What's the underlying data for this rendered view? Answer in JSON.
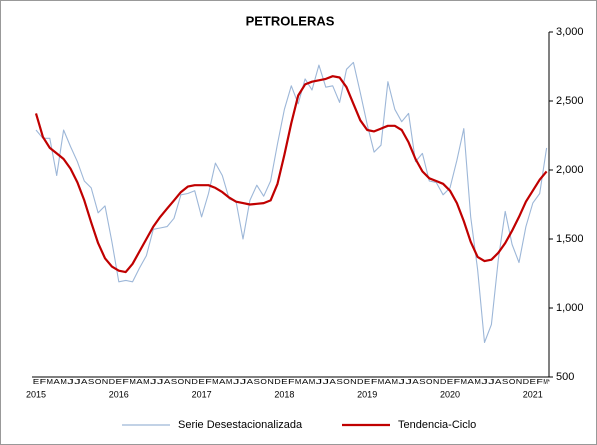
{
  "chart_data": {
    "type": "line",
    "title": "PETROLERAS",
    "categories": [
      "E",
      "F",
      "M",
      "A",
      "M",
      "J",
      "J",
      "A",
      "S",
      "O",
      "N",
      "D",
      "E",
      "F",
      "M",
      "A",
      "M",
      "J",
      "J",
      "A",
      "S",
      "O",
      "N",
      "D",
      "E",
      "F",
      "M",
      "A",
      "M",
      "J",
      "J",
      "A",
      "S",
      "O",
      "N",
      "D",
      "E",
      "F",
      "M",
      "A",
      "M",
      "J",
      "J",
      "A",
      "S",
      "O",
      "N",
      "D",
      "E",
      "F",
      "M",
      "A",
      "M",
      "J",
      "J",
      "A",
      "S",
      "O",
      "N",
      "D",
      "E",
      "F",
      "M",
      "A",
      "M",
      "J",
      "J",
      "A",
      "S",
      "O",
      "N",
      "D",
      "E",
      "F",
      "M*"
    ],
    "years": [
      "2015",
      "2016",
      "2017",
      "2018",
      "2019",
      "2020",
      "2021"
    ],
    "series": [
      {
        "name": "Serie Desestacionalizada",
        "color": "#9db7d8",
        "values": [
          2290,
          2230,
          2230,
          1960,
          2290,
          2170,
          2060,
          1920,
          1870,
          1690,
          1740,
          1480,
          1190,
          1200,
          1190,
          1290,
          1380,
          1570,
          1580,
          1590,
          1650,
          1820,
          1830,
          1850,
          1660,
          1830,
          2050,
          1960,
          1790,
          1770,
          1500,
          1780,
          1890,
          1810,
          1920,
          2190,
          2440,
          2610,
          2480,
          2660,
          2580,
          2760,
          2600,
          2610,
          2490,
          2730,
          2780,
          2560,
          2330,
          2130,
          2180,
          2640,
          2440,
          2350,
          2410,
          2060,
          2120,
          1920,
          1910,
          1820,
          1870,
          2070,
          2300,
          1660,
          1280,
          750,
          880,
          1350,
          1700,
          1460,
          1330,
          1590,
          1760,
          1830,
          2160
        ]
      },
      {
        "name": "Tendencia-Ciclo",
        "color": "#c00000",
        "values": [
          2410,
          2240,
          2160,
          2120,
          2080,
          2010,
          1910,
          1780,
          1620,
          1470,
          1360,
          1300,
          1270,
          1260,
          1320,
          1410,
          1500,
          1590,
          1660,
          1720,
          1780,
          1840,
          1880,
          1890,
          1890,
          1890,
          1870,
          1840,
          1800,
          1770,
          1760,
          1750,
          1755,
          1760,
          1780,
          1900,
          2110,
          2340,
          2540,
          2620,
          2640,
          2650,
          2660,
          2680,
          2670,
          2600,
          2480,
          2360,
          2290,
          2280,
          2300,
          2320,
          2320,
          2290,
          2200,
          2080,
          1990,
          1940,
          1920,
          1900,
          1850,
          1760,
          1630,
          1480,
          1370,
          1340,
          1350,
          1400,
          1470,
          1560,
          1660,
          1770,
          1850,
          1930,
          1990
        ]
      }
    ],
    "ylim": [
      500,
      3000
    ],
    "yticks": [
      500,
      {
        "value": 1000,
        "label": "1,000"
      },
      {
        "value": 1500,
        "label": "1,500"
      },
      {
        "value": 2000,
        "label": "2,000"
      },
      {
        "value": 2500,
        "label": "2,500"
      },
      {
        "value": 3000,
        "label": "3,000"
      }
    ]
  }
}
